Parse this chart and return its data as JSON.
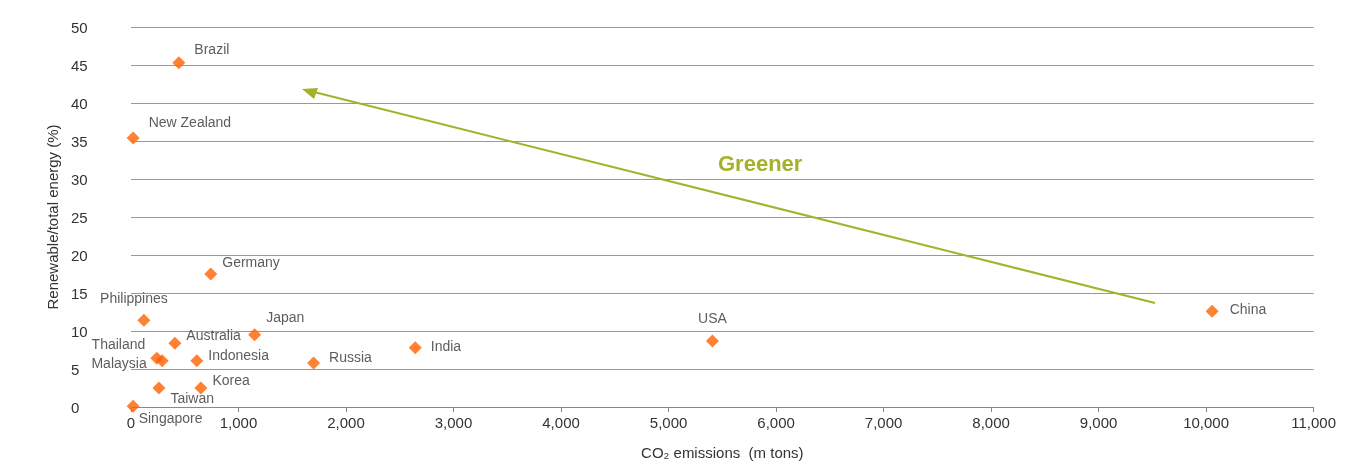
{
  "chart_data": {
    "type": "scatter",
    "xlabel": "CO₂ emissions  (m tons)",
    "ylabel": "Renewable/total energy (%)",
    "series": [
      {
        "name": "Brazil",
        "color": "#ff6200",
        "x": [
          445
        ],
        "values": [
          45.3
        ]
      },
      {
        "name": "New Zealand",
        "color": "#ff6200",
        "x": [
          20
        ],
        "values": [
          35.4
        ]
      },
      {
        "name": "Germany",
        "color": "#ff6200",
        "x": [
          742
        ],
        "values": [
          17.5
        ]
      },
      {
        "name": "Philippines",
        "color": "#ff6200",
        "x": [
          120
        ],
        "values": [
          11.4
        ]
      },
      {
        "name": "Australia",
        "color": "#ff6200",
        "x": [
          408
        ],
        "values": [
          8.4
        ]
      },
      {
        "name": "Japan",
        "color": "#ff6200",
        "x": [
          1150
        ],
        "values": [
          9.5
        ]
      },
      {
        "name": "Thailand",
        "color": "#ff6200",
        "x": [
          240
        ],
        "values": [
          6.4
        ]
      },
      {
        "name": "Malaysia",
        "color": "#ff6200",
        "x": [
          290
        ],
        "values": [
          6.1
        ]
      },
      {
        "name": "Indonesia",
        "color": "#ff6200",
        "x": [
          612
        ],
        "values": [
          6.1
        ]
      },
      {
        "name": "Russia",
        "color": "#ff6200",
        "x": [
          1698
        ],
        "values": [
          5.8
        ]
      },
      {
        "name": "India",
        "color": "#ff6200",
        "x": [
          2644
        ],
        "values": [
          7.8
        ]
      },
      {
        "name": "USA",
        "color": "#ff6200",
        "x": [
          5408
        ],
        "values": [
          8.7
        ]
      },
      {
        "name": "China",
        "color": "#ff6200",
        "x": [
          10056
        ],
        "values": [
          12.6
        ]
      },
      {
        "name": "Korea",
        "color": "#ff6200",
        "x": [
          650
        ],
        "values": [
          2.5
        ]
      },
      {
        "name": "Taiwan",
        "color": "#ff6200",
        "x": [
          260
        ],
        "values": [
          2.5
        ]
      },
      {
        "name": "Singapore",
        "color": "#ff6200",
        "x": [
          20
        ],
        "values": [
          0.1
        ]
      }
    ],
    "marker": "diamond",
    "xlim": [
      0,
      11000
    ],
    "xticks": [
      {
        "value": 0,
        "label": "0"
      },
      {
        "value": 1000,
        "label": "1,000"
      },
      {
        "value": 2000,
        "label": "2,000"
      },
      {
        "value": 3000,
        "label": "3,000"
      },
      {
        "value": 4000,
        "label": "4,000"
      },
      {
        "value": 5000,
        "label": "5,000"
      },
      {
        "value": 6000,
        "label": "6,000"
      },
      {
        "value": 7000,
        "label": "7,000"
      },
      {
        "value": 8000,
        "label": "8,000"
      },
      {
        "value": 9000,
        "label": "9,000"
      },
      {
        "value": 10000,
        "label": "10,000"
      },
      {
        "value": 11000,
        "label": "11,000"
      }
    ],
    "ylim": [
      0,
      50
    ],
    "yticks": [
      0,
      5,
      10,
      15,
      20,
      25,
      30,
      35,
      40,
      45,
      50
    ],
    "grid": "y",
    "annotations": [
      "Greener"
    ]
  }
}
